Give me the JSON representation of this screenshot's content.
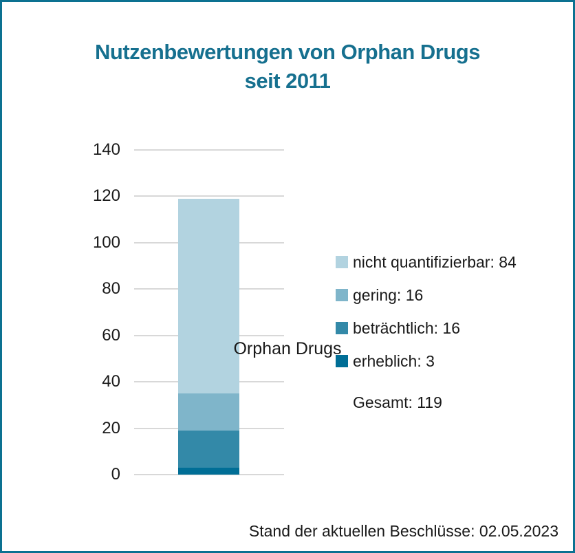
{
  "page": {
    "frame_color": "#0c7191",
    "background_color": "#ffffff",
    "text_color": "#1a1a1a"
  },
  "title": {
    "line1": "Nutzenbewertungen von Orphan Drugs",
    "line2": "seit 2011",
    "color": "#16708f"
  },
  "chart_data": {
    "type": "bar",
    "stacked": true,
    "title": "Nutzenbewertungen von Orphan Drugs seit 2011",
    "categories": [
      "Orphan Drugs"
    ],
    "xlabel": "Orphan Drugs",
    "ylabel": "",
    "ylim": [
      0,
      140
    ],
    "yticks": [
      0,
      20,
      40,
      60,
      80,
      100,
      120,
      140
    ],
    "grid": true,
    "gridline_color": "#d8d8d8",
    "series_bottom_to_top": [
      {
        "name": "erheblich",
        "values": [
          3
        ],
        "color": "#006e96"
      },
      {
        "name": "beträchtlich",
        "values": [
          16
        ],
        "color": "#3389a8"
      },
      {
        "name": "gering",
        "values": [
          16
        ],
        "color": "#7fb5ca"
      },
      {
        "name": "nicht quantifizierbar",
        "values": [
          84
        ],
        "color": "#b2d3e0"
      }
    ],
    "legend": {
      "position": "right",
      "items": [
        {
          "label": "nicht quantifizierbar",
          "value": 84,
          "color": "#b2d3e0"
        },
        {
          "label": "gering",
          "value": 16,
          "color": "#7fb5ca"
        },
        {
          "label": "beträchtlich",
          "value": 16,
          "color": "#3389a8"
        },
        {
          "label": "erheblich",
          "value": 3,
          "color": "#006e96"
        }
      ],
      "total": {
        "label": "Gesamt",
        "value": 119
      }
    }
  },
  "footer": {
    "status_text": "Stand der aktuellen Beschlüsse: 02.05.2023"
  }
}
